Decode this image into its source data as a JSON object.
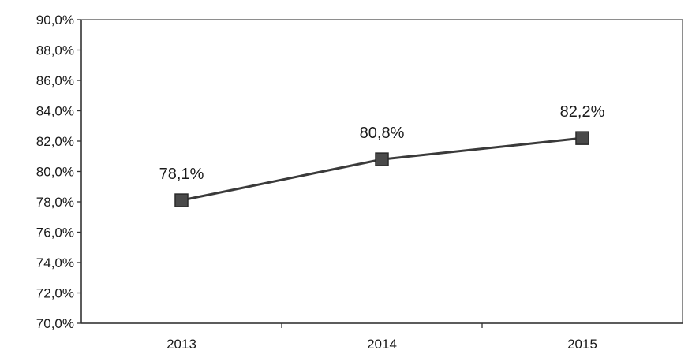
{
  "chart_data": {
    "type": "line",
    "title": "",
    "xlabel": "",
    "ylabel": "",
    "categories": [
      "2013",
      "2014",
      "2015"
    ],
    "series": [
      {
        "values": [
          78.1,
          80.8,
          82.2
        ],
        "data_labels": [
          "78,1%",
          "80,8%",
          "82,2%"
        ],
        "color": "#3a3a3a",
        "marker": "square"
      }
    ],
    "ylim": [
      70,
      90
    ],
    "y_ticks": [
      70,
      72,
      74,
      76,
      78,
      80,
      82,
      84,
      86,
      88,
      90
    ],
    "y_tick_labels": [
      "70,0%",
      "72,0%",
      "74,0%",
      "76,0%",
      "78,0%",
      "80,0%",
      "82,0%",
      "84,0%",
      "86,0%",
      "88,0%",
      "90,0%"
    ],
    "grid": false,
    "legend": "none",
    "colors": {
      "line": "#3a3a3a",
      "marker_fill": "#4a4a4a",
      "axis": "#333333"
    }
  }
}
